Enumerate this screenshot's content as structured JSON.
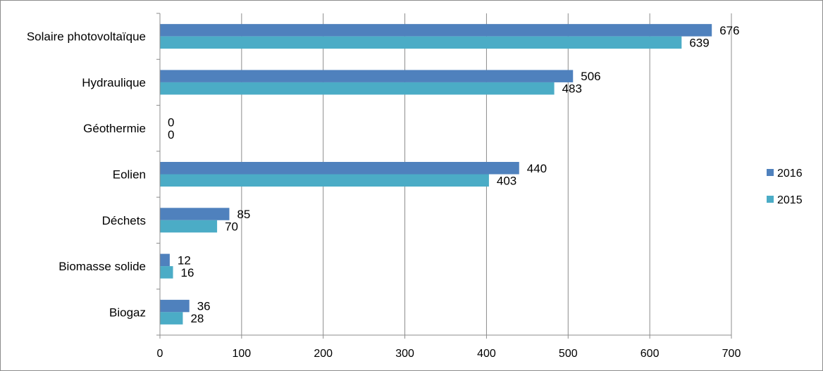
{
  "chart_data": {
    "type": "bar",
    "orientation": "horizontal",
    "categories": [
      "Solaire photovoltaïque",
      "Hydraulique",
      "Géothermie",
      "Eolien",
      "Déchets",
      "Biomasse solide",
      "Biogaz"
    ],
    "series": [
      {
        "name": "2016",
        "values": [
          676,
          506,
          0,
          440,
          85,
          12,
          36
        ],
        "color": "#4f81bd"
      },
      {
        "name": "2015",
        "values": [
          639,
          483,
          0,
          403,
          70,
          16,
          28
        ],
        "color": "#4bacc6"
      }
    ],
    "xlim": [
      0,
      700
    ],
    "xticks": [
      0,
      100,
      200,
      300,
      400,
      500,
      600,
      700
    ],
    "grid": true,
    "data_labels": true,
    "legend": "right",
    "title": "",
    "xlabel": "",
    "ylabel": ""
  }
}
